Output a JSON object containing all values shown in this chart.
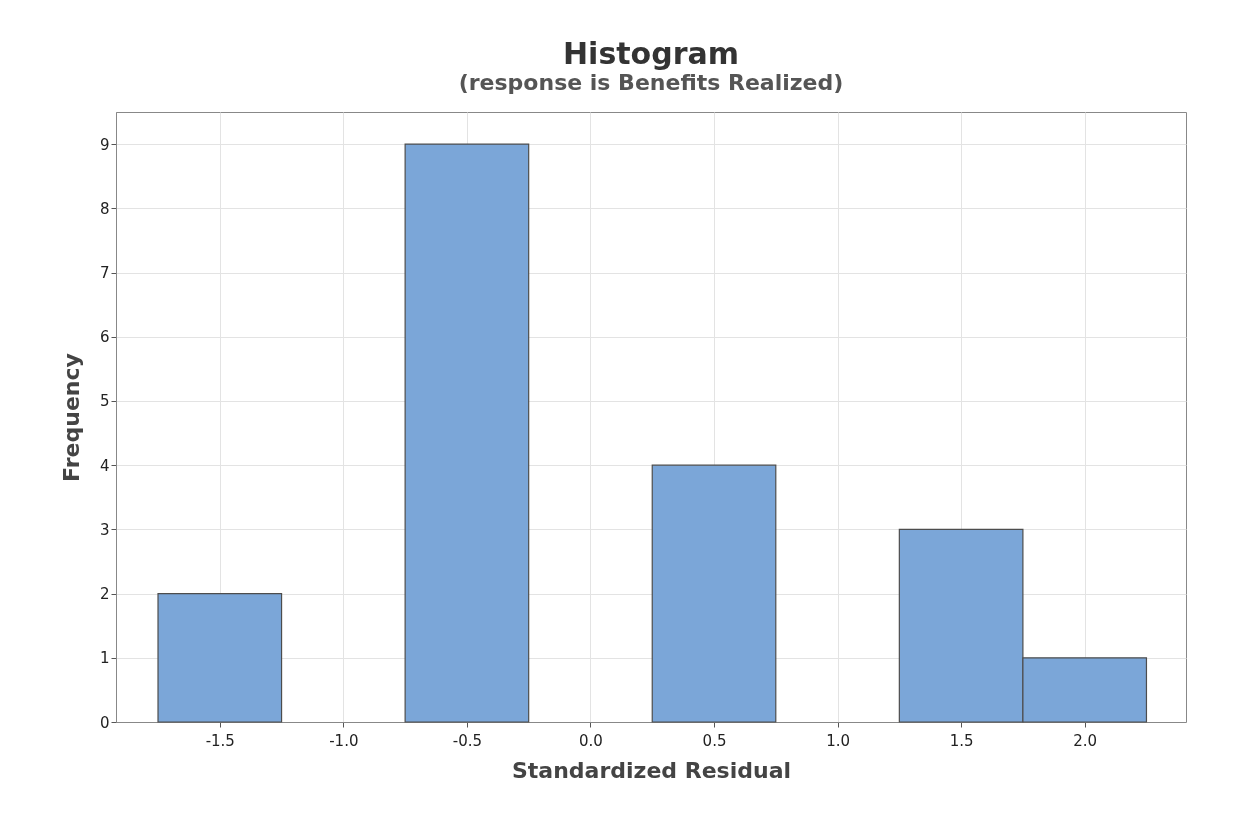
{
  "chart_data": {
    "type": "histogram",
    "title": "Histogram",
    "subtitle": "(response is Benefits Realized)",
    "xlabel": "Standardized Residual",
    "ylabel": "Frequency",
    "bins": [
      -1.75,
      -1.25,
      -0.75,
      -0.25,
      0.25,
      0.75,
      1.25,
      1.75,
      2.25
    ],
    "values": [
      2,
      0,
      9,
      0,
      4,
      0,
      3,
      1
    ],
    "color": "#7ba6d8",
    "xlim": [
      -1.92,
      2.41
    ],
    "xticks": [
      {
        "value": -1.5,
        "label": "-1.5"
      },
      {
        "value": -1,
        "label": "-1.0"
      },
      {
        "value": -0.5,
        "label": "-0.5"
      },
      {
        "value": 0,
        "label": "0.0"
      },
      {
        "value": 0.5,
        "label": "0.5"
      },
      {
        "value": 1,
        "label": "1.0"
      },
      {
        "value": 1.5,
        "label": "1.5"
      },
      {
        "value": 2,
        "label": "2.0"
      }
    ],
    "ylim": [
      0,
      9.5
    ],
    "yticks": [
      0,
      1,
      2,
      3,
      4,
      5,
      6,
      7,
      8,
      9
    ],
    "grid": true
  }
}
